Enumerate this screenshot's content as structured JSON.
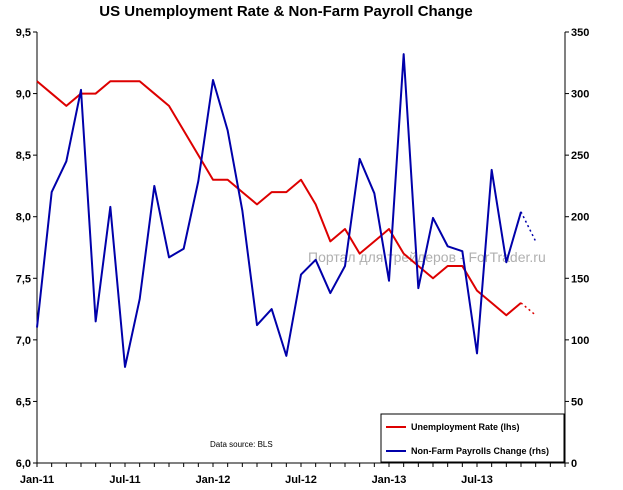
{
  "chart_data": {
    "type": "line",
    "title": "US Unemployment Rate & Non-Farm Payroll Change",
    "source_note": "Data source: BLS",
    "watermark": "Портал для трейдеров - ForTrader.ru",
    "x_tick_labels": [
      "Jan-11",
      "Jul-11",
      "Jan-12",
      "Jul-12",
      "Jan-13",
      "Jul-13"
    ],
    "x_tick_months": [
      0,
      6,
      12,
      18,
      24,
      30
    ],
    "x_range_months": [
      0,
      36
    ],
    "y_left": {
      "ylim": [
        6.0,
        9.5
      ],
      "ticks": [
        "6,0",
        "6,5",
        "7,0",
        "7,5",
        "8,0",
        "8,5",
        "9,0",
        "9,5"
      ],
      "tick_values": [
        6.0,
        6.5,
        7.0,
        7.5,
        8.0,
        8.5,
        9.0,
        9.5
      ]
    },
    "y_right": {
      "ylim": [
        0,
        350
      ],
      "ticks": [
        "0",
        "50",
        "100",
        "150",
        "200",
        "250",
        "300",
        "350"
      ],
      "tick_values": [
        0,
        50,
        100,
        150,
        200,
        250,
        300,
        350
      ]
    },
    "grid": false,
    "legend_position": "bottom-right",
    "series": [
      {
        "name": "Unemployment Rate (lhs)",
        "axis": "left",
        "color": "#dd0000",
        "x": [
          0,
          1,
          2,
          3,
          4,
          5,
          6,
          7,
          8,
          9,
          10,
          11,
          12,
          13,
          14,
          15,
          16,
          17,
          18,
          19,
          20,
          21,
          22,
          23,
          24,
          25,
          26,
          27,
          28,
          29,
          30,
          31,
          32,
          33
        ],
        "values": [
          9.1,
          9.0,
          8.9,
          9.0,
          9.0,
          9.1,
          9.1,
          9.1,
          9.0,
          8.9,
          8.7,
          8.5,
          8.3,
          8.3,
          8.2,
          8.1,
          8.2,
          8.2,
          8.3,
          8.1,
          7.8,
          7.9,
          7.7,
          7.8,
          7.9,
          7.7,
          7.6,
          7.5,
          7.6,
          7.6,
          7.4,
          7.3,
          7.2,
          7.3
        ],
        "projection": {
          "x": [
            33,
            34
          ],
          "values": [
            7.3,
            7.2
          ]
        }
      },
      {
        "name": "Non-Farm Payrolls Change (rhs)",
        "axis": "right",
        "color": "#0000aa",
        "x": [
          0,
          1,
          2,
          3,
          4,
          5,
          6,
          7,
          8,
          9,
          10,
          11,
          12,
          13,
          14,
          15,
          16,
          17,
          18,
          19,
          20,
          21,
          22,
          23,
          24,
          25,
          26,
          27,
          28,
          29,
          30,
          31,
          32,
          33
        ],
        "values": [
          110,
          220,
          245,
          303,
          115,
          208,
          78,
          133,
          225,
          167,
          174,
          229,
          311,
          270,
          205,
          112,
          125,
          87,
          153,
          165,
          138,
          160,
          247,
          219,
          148,
          332,
          142,
          199,
          176,
          172,
          89,
          238,
          163,
          204
        ],
        "projection": {
          "x": [
            33,
            34
          ],
          "values": [
            204,
            180
          ]
        }
      }
    ]
  }
}
